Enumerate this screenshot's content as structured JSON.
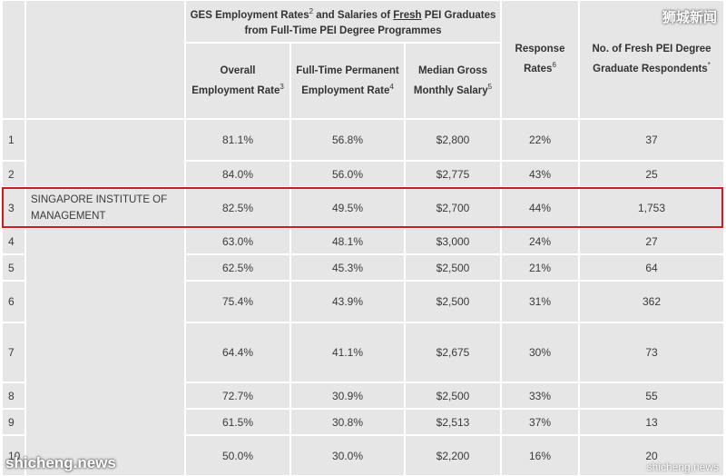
{
  "watermark": {
    "brand": "狮城新闻",
    "site_left": "shicheng.news",
    "site_right": "shicheng.news"
  },
  "header": {
    "group_title_pre": "GES Employment Rates",
    "group_title_sup": "2",
    "group_title_mid": " and Salaries of ",
    "group_title_fresh": "Fresh",
    "group_title_post": " PEI Graduates from Full-Time PEI Degree Programmes",
    "overall_label": "Overall Employment Rate",
    "overall_sup": "3",
    "fulltime_label": "Full-Time Permanent Employment Rate",
    "fulltime_sup": "4",
    "salary_label": "Median Gross Monthly Salary",
    "salary_sup": "5",
    "response_label": "Response Rates",
    "response_sup": "6",
    "respondents_label": "No. of Fresh PEI Degree Graduate Respondents",
    "respondents_sup": "*"
  },
  "rows": [
    {
      "rank": "1",
      "name": "",
      "overall": "81.1%",
      "fulltime": "56.8%",
      "salary": "$2,800",
      "response": "22%",
      "respondents": "37"
    },
    {
      "rank": "2",
      "name": "",
      "overall": "84.0%",
      "fulltime": "56.0%",
      "salary": "$2,775",
      "response": "43%",
      "respondents": "25"
    },
    {
      "rank": "3",
      "name": "SINGAPORE INSTITUTE OF MANAGEMENT",
      "overall": "82.5%",
      "fulltime": "49.5%",
      "salary": "$2,700",
      "response": "44%",
      "respondents": "1,753"
    },
    {
      "rank": "4",
      "name": "",
      "overall": "63.0%",
      "fulltime": "48.1%",
      "salary": "$3,000",
      "response": "24%",
      "respondents": "27"
    },
    {
      "rank": "5",
      "name": "",
      "overall": "62.5%",
      "fulltime": "45.3%",
      "salary": "$2,500",
      "response": "21%",
      "respondents": "64"
    },
    {
      "rank": "6",
      "name": "",
      "overall": "75.4%",
      "fulltime": "43.9%",
      "salary": "$2,500",
      "response": "31%",
      "respondents": "362"
    },
    {
      "rank": "7",
      "name": "",
      "overall": "64.4%",
      "fulltime": "41.1%",
      "salary": "$2,675",
      "response": "30%",
      "respondents": "73"
    },
    {
      "rank": "8",
      "name": "",
      "overall": "72.7%",
      "fulltime": "30.9%",
      "salary": "$2,500",
      "response": "33%",
      "respondents": "55"
    },
    {
      "rank": "9",
      "name": "",
      "overall": "61.5%",
      "fulltime": "30.8%",
      "salary": "$2,513",
      "response": "37%",
      "respondents": "13"
    },
    {
      "rank": "10",
      "name": "",
      "overall": "50.0%",
      "fulltime": "30.0%",
      "salary": "$2,200",
      "response": "16%",
      "respondents": "20"
    }
  ]
}
